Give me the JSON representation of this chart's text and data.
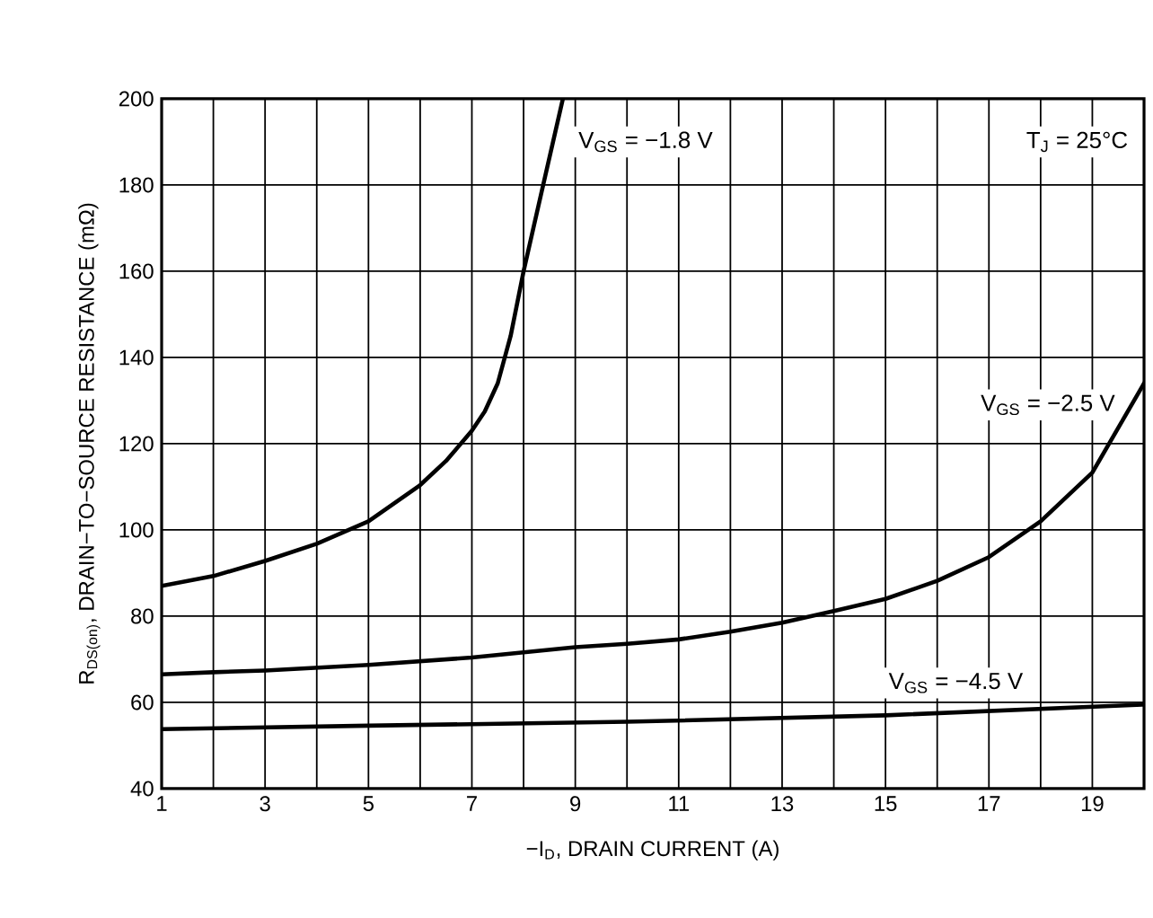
{
  "chart_data": {
    "type": "line",
    "xlabel": "−I$_{D}$, DRAIN CURRENT (A)",
    "ylabel": "R$_{DS(on)}$, DRAIN−TO−SOURCE RESISTANCE (mΩ)",
    "annotations": [
      "T$_{J}$ = 25°C"
    ],
    "xlim": [
      1,
      20
    ],
    "ylim": [
      40,
      200
    ],
    "xticks": [
      1,
      {
        "value": 2,
        "label": null
      },
      3,
      {
        "value": 4,
        "label": null
      },
      5,
      {
        "value": 6,
        "label": null
      },
      7,
      {
        "value": 8,
        "label": null
      },
      9,
      {
        "value": 10,
        "label": null
      },
      11,
      {
        "value": 12,
        "label": null
      },
      13,
      {
        "value": 14,
        "label": null
      },
      15,
      {
        "value": 16,
        "label": null
      },
      17,
      {
        "value": 18,
        "label": null
      },
      19,
      {
        "value": 20,
        "label": null
      }
    ],
    "yticks": [
      40,
      60,
      80,
      100,
      120,
      140,
      160,
      180,
      200
    ],
    "grid": true,
    "legend": false,
    "marker": "none",
    "line_style": "solid",
    "series": [
      {
        "name": "V$_{GS}$ = −1.8 V",
        "color": "#000000",
        "x": [
          1,
          2,
          3,
          4,
          5,
          6,
          6.5,
          7,
          7.25,
          7.5,
          7.75,
          8,
          8.35,
          8.76
        ],
        "values": [
          87,
          89.3,
          92.8,
          96.8,
          102,
          110.4,
          116,
          123,
          127.5,
          134,
          145,
          160,
          178.5,
          200
        ]
      },
      {
        "name": "V$_{GS}$ = −2.5 V",
        "color": "#000000",
        "x": [
          1,
          2,
          3,
          5,
          7,
          9,
          10,
          11,
          12,
          13,
          14,
          15,
          16,
          17,
          18,
          19,
          20
        ],
        "values": [
          66.5,
          67,
          67.4,
          68.7,
          70.4,
          72.8,
          73.6,
          74.6,
          76.4,
          78.5,
          81.2,
          84,
          88.2,
          93.7,
          102,
          113.3,
          134
        ]
      },
      {
        "name": "V$_{GS}$ = −4.5 V",
        "color": "#000000",
        "x": [
          1,
          5,
          10,
          15,
          20
        ],
        "values": [
          53.8,
          54.6,
          55.5,
          57,
          59.5
        ]
      }
    ]
  }
}
